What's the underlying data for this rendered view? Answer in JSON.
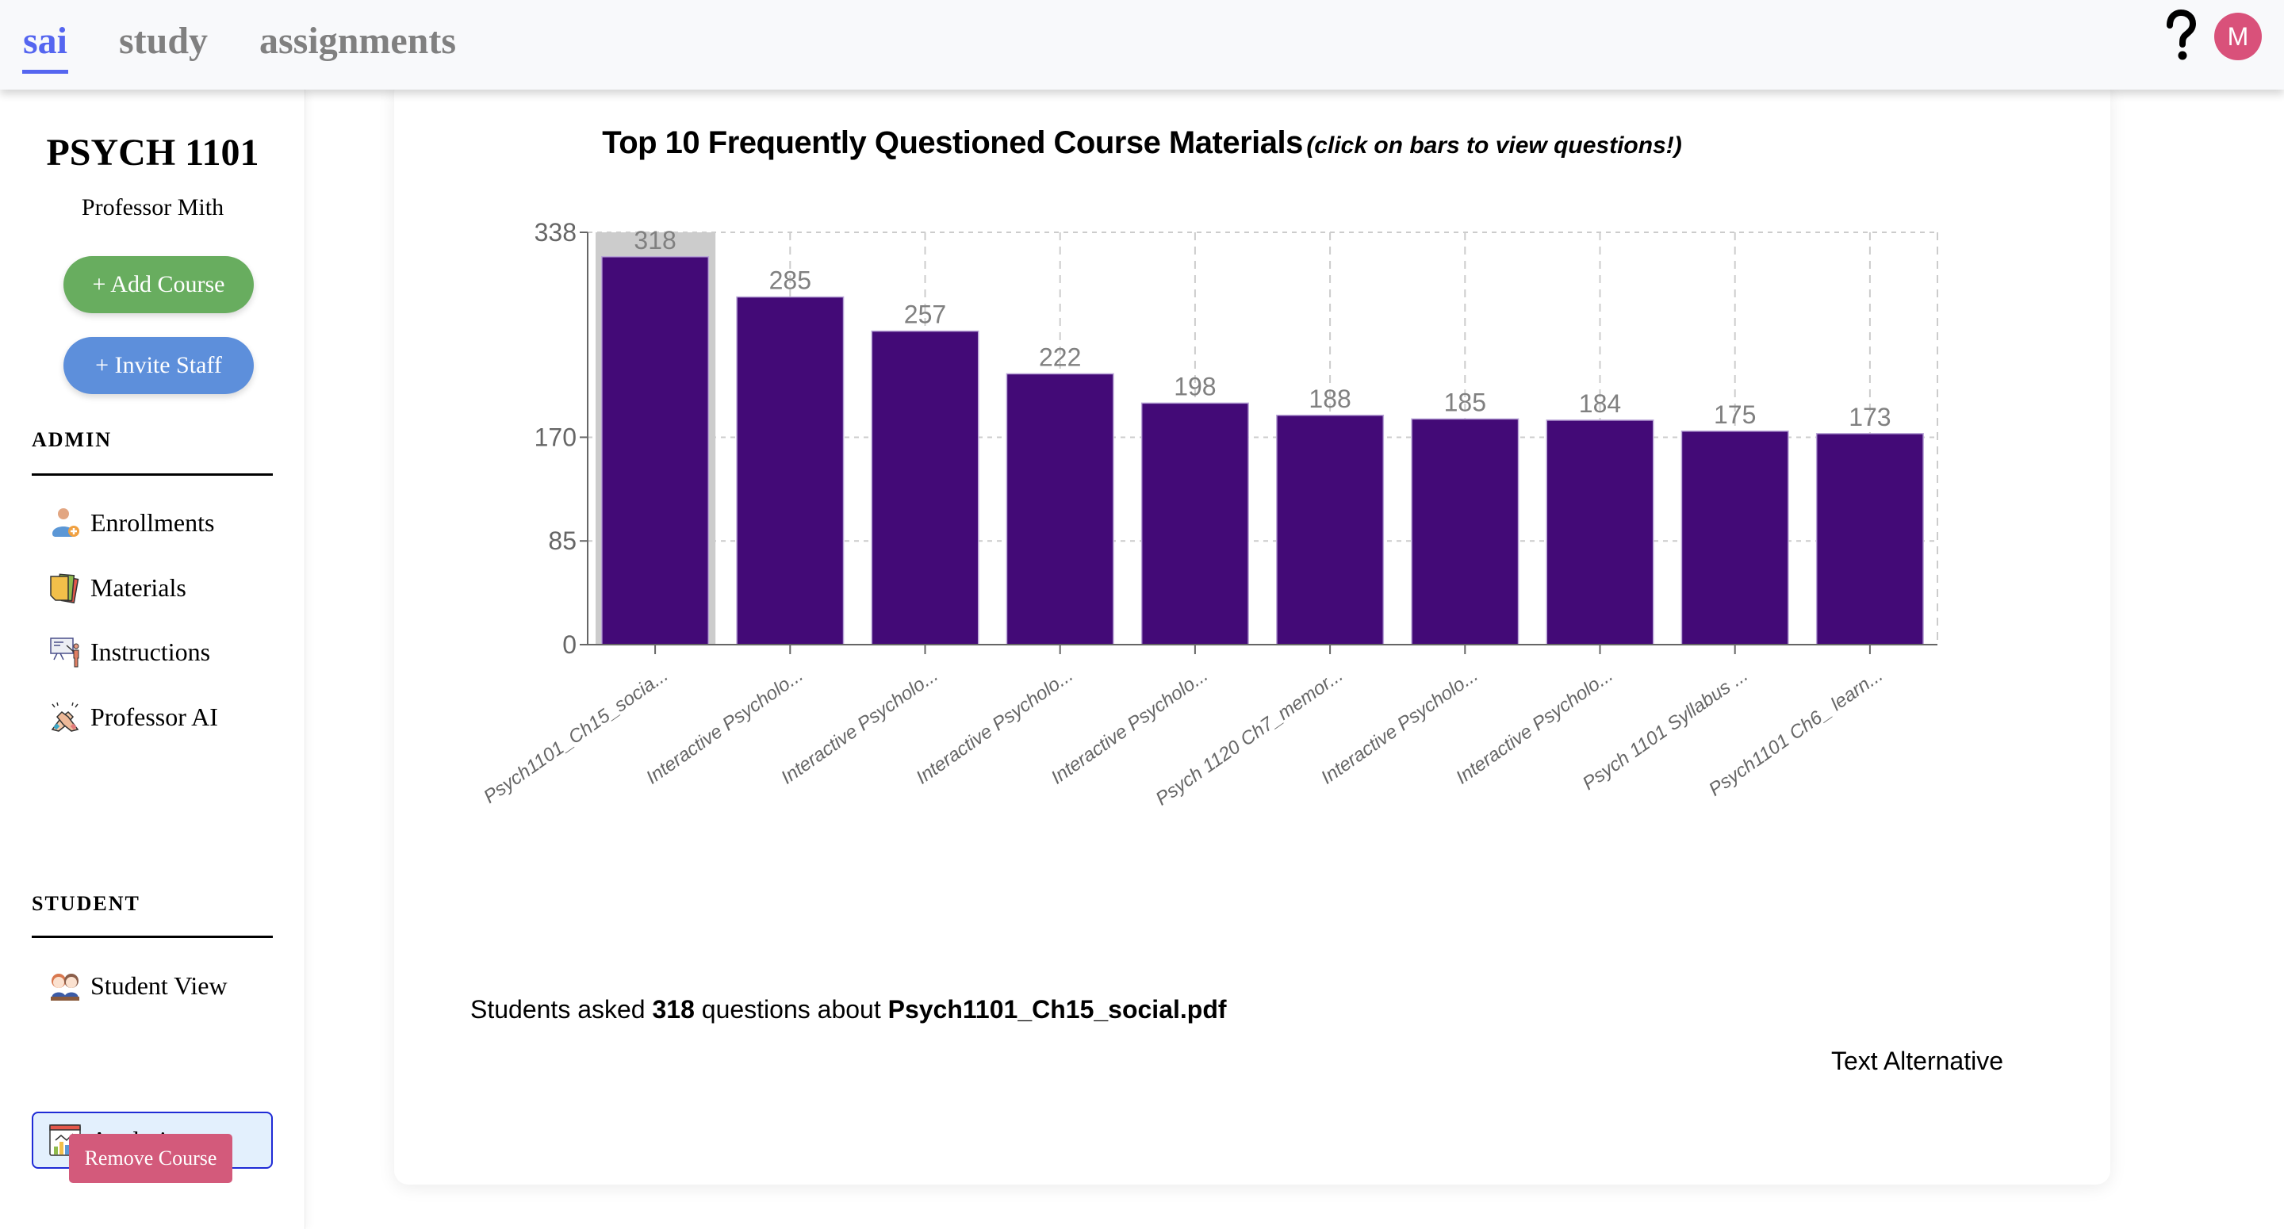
{
  "header": {
    "tabs": [
      {
        "label": "sai",
        "active": true
      },
      {
        "label": "study",
        "active": false
      },
      {
        "label": "assignments",
        "active": false
      }
    ],
    "help_icon": "question-mark-icon",
    "avatar_initial": "M",
    "avatar_color": "#d9517a"
  },
  "sidebar": {
    "course_title": "PSYCH 1101",
    "professor": "Professor Mith",
    "add_course_label": "+ Add Course",
    "invite_staff_label": "+ Invite Staff",
    "admin_label": "ADMIN",
    "admin_items": [
      {
        "label": "Enrollments",
        "icon": "add-user-icon"
      },
      {
        "label": "Materials",
        "icon": "documents-icon"
      },
      {
        "label": "Instructions",
        "icon": "presentation-icon"
      },
      {
        "label": "Professor AI",
        "icon": "handshake-icon"
      }
    ],
    "student_label": "STUDENT",
    "student_items": [
      {
        "label": "Student View",
        "icon": "students-icon",
        "active": false
      },
      {
        "label": "Analytics",
        "icon": "analytics-icon",
        "active": true
      }
    ],
    "remove_course_label": "Remove Course"
  },
  "main": {
    "summary": {
      "prefix": "Students asked ",
      "count": "318",
      "middle": " questions about ",
      "file": "Psych1101_Ch15_social.pdf"
    },
    "text_alternative_label": "Text Alternative"
  },
  "chart_data": {
    "type": "bar",
    "title": "Top 10 Frequently Questioned Course Materials",
    "subtitle": "(click on bars to view questions!)",
    "categories": [
      "Psych1101_Ch15_socia...",
      "Interactive Psycholo...",
      "Interactive Psycholo...",
      "Interactive Psycholo...",
      "Interactive Psycholo...",
      "Psych 1120 Ch7_memor...",
      "Interactive Psycholo...",
      "Interactive Psycholo...",
      "Psych 1101 Syllabus ...",
      "Psych1101 Ch6_ learn..."
    ],
    "values": [
      318,
      285,
      257,
      222,
      198,
      188,
      185,
      184,
      175,
      173
    ],
    "data_labels": [
      "318",
      "285",
      "257",
      "222",
      "198",
      "188",
      "185",
      "184",
      "175",
      "173"
    ],
    "yticks": [
      0,
      85,
      170,
      338
    ],
    "ytick_labels": [
      "0",
      "85",
      "170",
      "338"
    ],
    "ylim": [
      0,
      338
    ],
    "xlabel": "",
    "ylabel": "",
    "grid": true,
    "selected_index": 0,
    "bar_color": "#430a77",
    "highlight_color": "#cccccc"
  }
}
